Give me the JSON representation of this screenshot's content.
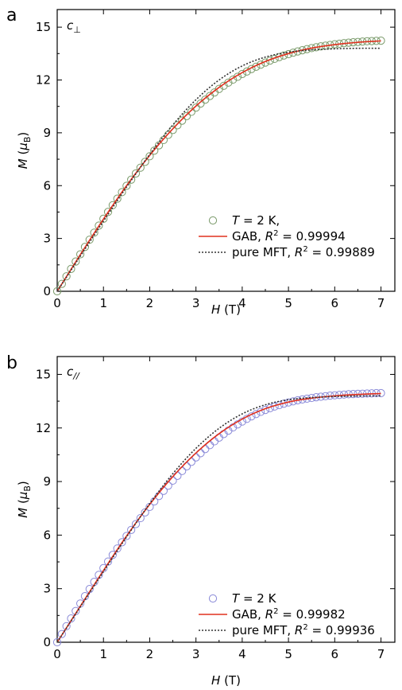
{
  "chart_data": [
    {
      "type": "scatter",
      "panel_label": "a",
      "direction_label": {
        "main": "c",
        "sub": "⊥"
      },
      "xlabel": {
        "symbol": "H",
        "unit": "(T)"
      },
      "ylabel": {
        "symbol": "M",
        "unit_prefix": "(",
        "mu": "μ",
        "sub": "B",
        "unit_suffix": ")"
      },
      "xlim": [
        0,
        7.3
      ],
      "ylim": [
        0,
        16
      ],
      "xticks": [
        0,
        1,
        2,
        3,
        4,
        5,
        6,
        7
      ],
      "yticks": [
        0,
        3,
        6,
        9,
        12,
        15
      ],
      "marker_color": "#7a9a6a",
      "series": [
        {
          "name": "T = 2 K,",
          "legend": {
            "symbol": "T",
            "text": " = 2 K,"
          },
          "style": "circles",
          "x": [
            0,
            0.1,
            0.2,
            0.3,
            0.4,
            0.5,
            0.6,
            0.7,
            0.8,
            0.9,
            1.0,
            1.1,
            1.2,
            1.3,
            1.4,
            1.5,
            1.6,
            1.7,
            1.8,
            1.9,
            2.0,
            2.1,
            2.2,
            2.3,
            2.4,
            2.5,
            2.6,
            2.7,
            2.8,
            2.9,
            3.0,
            3.1,
            3.2,
            3.3,
            3.4,
            3.5,
            3.6,
            3.7,
            3.8,
            3.9,
            4.0,
            4.1,
            4.2,
            4.3,
            4.4,
            4.5,
            4.6,
            4.7,
            4.8,
            4.9,
            5.0,
            5.1,
            5.2,
            5.3,
            5.4,
            5.5,
            5.6,
            5.7,
            5.8,
            5.9,
            6.0,
            6.1,
            6.2,
            6.3,
            6.4,
            6.5,
            6.6,
            6.7,
            6.8,
            6.9,
            7.0
          ],
          "y": [
            0,
            0.42,
            0.85,
            1.27,
            1.69,
            2.1,
            2.52,
            2.93,
            3.33,
            3.73,
            4.12,
            4.51,
            4.89,
            5.26,
            5.63,
            5.99,
            6.34,
            6.69,
            7.02,
            7.35,
            7.67,
            7.99,
            8.29,
            8.59,
            8.88,
            9.16,
            9.43,
            9.69,
            9.95,
            10.19,
            10.43,
            10.66,
            10.88,
            11.09,
            11.29,
            11.49,
            11.67,
            11.85,
            12.02,
            12.18,
            12.34,
            12.48,
            12.62,
            12.75,
            12.87,
            12.99,
            13.1,
            13.2,
            13.3,
            13.39,
            13.47,
            13.55,
            13.62,
            13.69,
            13.75,
            13.81,
            13.86,
            13.91,
            13.95,
            13.99,
            14.03,
            14.06,
            14.09,
            14.12,
            14.14,
            14.16,
            14.18,
            14.2,
            14.21,
            14.22,
            14.23
          ]
        },
        {
          "name": "GAB, R2 = 0.99994",
          "legend": {
            "text": "GAB, ",
            "symbol": "R",
            "sup": "2",
            "value": " = 0.99994"
          },
          "style": "solid",
          "color": "#e0301e",
          "x": [
            0,
            0.5,
            1.0,
            1.5,
            2.0,
            2.5,
            3.0,
            3.5,
            4.0,
            4.5,
            5.0,
            5.5,
            6.0,
            6.5,
            7.0
          ],
          "y": [
            0,
            2.08,
            4.1,
            6.0,
            7.72,
            9.23,
            10.52,
            11.58,
            12.42,
            13.05,
            13.5,
            13.81,
            14.01,
            14.14,
            14.22
          ]
        },
        {
          "name": "pure MFT, R2 = 0.99889",
          "legend": {
            "text": "pure MFT, ",
            "symbol": "R",
            "sup": "2",
            "value": " = 0.99889"
          },
          "style": "dotted",
          "color": "#333333",
          "x": [
            0,
            0.5,
            1.0,
            1.5,
            2.0,
            2.5,
            3.0,
            3.5,
            4.0,
            4.5,
            5.0,
            5.5,
            6.0,
            6.5,
            7.0
          ],
          "y": [
            0,
            2.0,
            3.98,
            5.92,
            7.77,
            9.45,
            10.88,
            12.0,
            12.8,
            13.3,
            13.58,
            13.71,
            13.77,
            13.8,
            13.8
          ]
        }
      ]
    },
    {
      "type": "scatter",
      "panel_label": "b",
      "direction_label": {
        "main": "c",
        "sub": "//"
      },
      "xlabel": {
        "symbol": "H",
        "unit": "(T)"
      },
      "ylabel": {
        "symbol": "M",
        "unit_prefix": "(",
        "mu": "μ",
        "sub": "B",
        "unit_suffix": ")"
      },
      "xlim": [
        0,
        7.3
      ],
      "ylim": [
        0,
        16
      ],
      "xticks": [
        0,
        1,
        2,
        3,
        4,
        5,
        6,
        7
      ],
      "yticks": [
        0,
        3,
        6,
        9,
        12,
        15
      ],
      "marker_color": "#8a8ad8",
      "series": [
        {
          "name": "T = 2 K",
          "legend": {
            "symbol": "T",
            "text": " = 2 K"
          },
          "style": "circles",
          "x": [
            0,
            0.1,
            0.2,
            0.3,
            0.4,
            0.5,
            0.6,
            0.7,
            0.8,
            0.9,
            1.0,
            1.1,
            1.2,
            1.3,
            1.4,
            1.5,
            1.6,
            1.7,
            1.8,
            1.9,
            2.0,
            2.1,
            2.2,
            2.3,
            2.4,
            2.5,
            2.6,
            2.7,
            2.8,
            2.9,
            3.0,
            3.1,
            3.2,
            3.3,
            3.4,
            3.5,
            3.6,
            3.7,
            3.8,
            3.9,
            4.0,
            4.1,
            4.2,
            4.3,
            4.4,
            4.5,
            4.6,
            4.7,
            4.8,
            4.9,
            5.0,
            5.1,
            5.2,
            5.3,
            5.4,
            5.5,
            5.6,
            5.7,
            5.8,
            5.9,
            6.0,
            6.1,
            6.2,
            6.3,
            6.4,
            6.5,
            6.6,
            6.7,
            6.8,
            6.9,
            7.0
          ],
          "y": [
            0,
            0.46,
            0.9,
            1.33,
            1.75,
            2.17,
            2.58,
            2.98,
            3.38,
            3.77,
            4.15,
            4.52,
            4.89,
            5.25,
            5.6,
            5.95,
            6.29,
            6.62,
            6.95,
            7.27,
            7.58,
            7.89,
            8.19,
            8.48,
            8.77,
            9.05,
            9.32,
            9.59,
            9.85,
            10.1,
            10.35,
            10.59,
            10.82,
            11.04,
            11.25,
            11.46,
            11.66,
            11.85,
            12.03,
            12.2,
            12.36,
            12.51,
            12.65,
            12.78,
            12.9,
            13.01,
            13.11,
            13.2,
            13.28,
            13.36,
            13.43,
            13.49,
            13.55,
            13.6,
            13.64,
            13.68,
            13.72,
            13.75,
            13.78,
            13.81,
            13.83,
            13.85,
            13.87,
            13.89,
            13.9,
            13.91,
            13.92,
            13.93,
            13.94,
            13.95,
            13.95
          ]
        },
        {
          "name": "GAB, R2 = 0.99982",
          "legend": {
            "text": "GAB, ",
            "symbol": "R",
            "sup": "2",
            "value": " = 0.99982"
          },
          "style": "solid",
          "color": "#e0301e",
          "x": [
            0,
            0.5,
            1.0,
            1.5,
            2.0,
            2.5,
            3.0,
            3.5,
            4.0,
            4.5,
            5.0,
            5.5,
            6.0,
            6.5,
            7.0
          ],
          "y": [
            0,
            2.02,
            4.02,
            5.95,
            7.72,
            9.28,
            10.6,
            11.68,
            12.5,
            13.08,
            13.45,
            13.67,
            13.8,
            13.88,
            13.93
          ]
        },
        {
          "name": "pure MFT, R2 = 0.99936",
          "legend": {
            "text": "pure MFT, ",
            "symbol": "R",
            "sup": "2",
            "value": " = 0.99936"
          },
          "style": "dotted",
          "color": "#333333",
          "x": [
            0,
            0.5,
            1.0,
            1.5,
            2.0,
            2.5,
            3.0,
            3.5,
            4.0,
            4.5,
            5.0,
            5.5,
            6.0,
            6.5,
            7.0
          ],
          "y": [
            0,
            1.98,
            3.95,
            5.9,
            7.76,
            9.44,
            10.86,
            11.98,
            12.79,
            13.3,
            13.58,
            13.7,
            13.76,
            13.79,
            13.8
          ]
        }
      ]
    }
  ]
}
